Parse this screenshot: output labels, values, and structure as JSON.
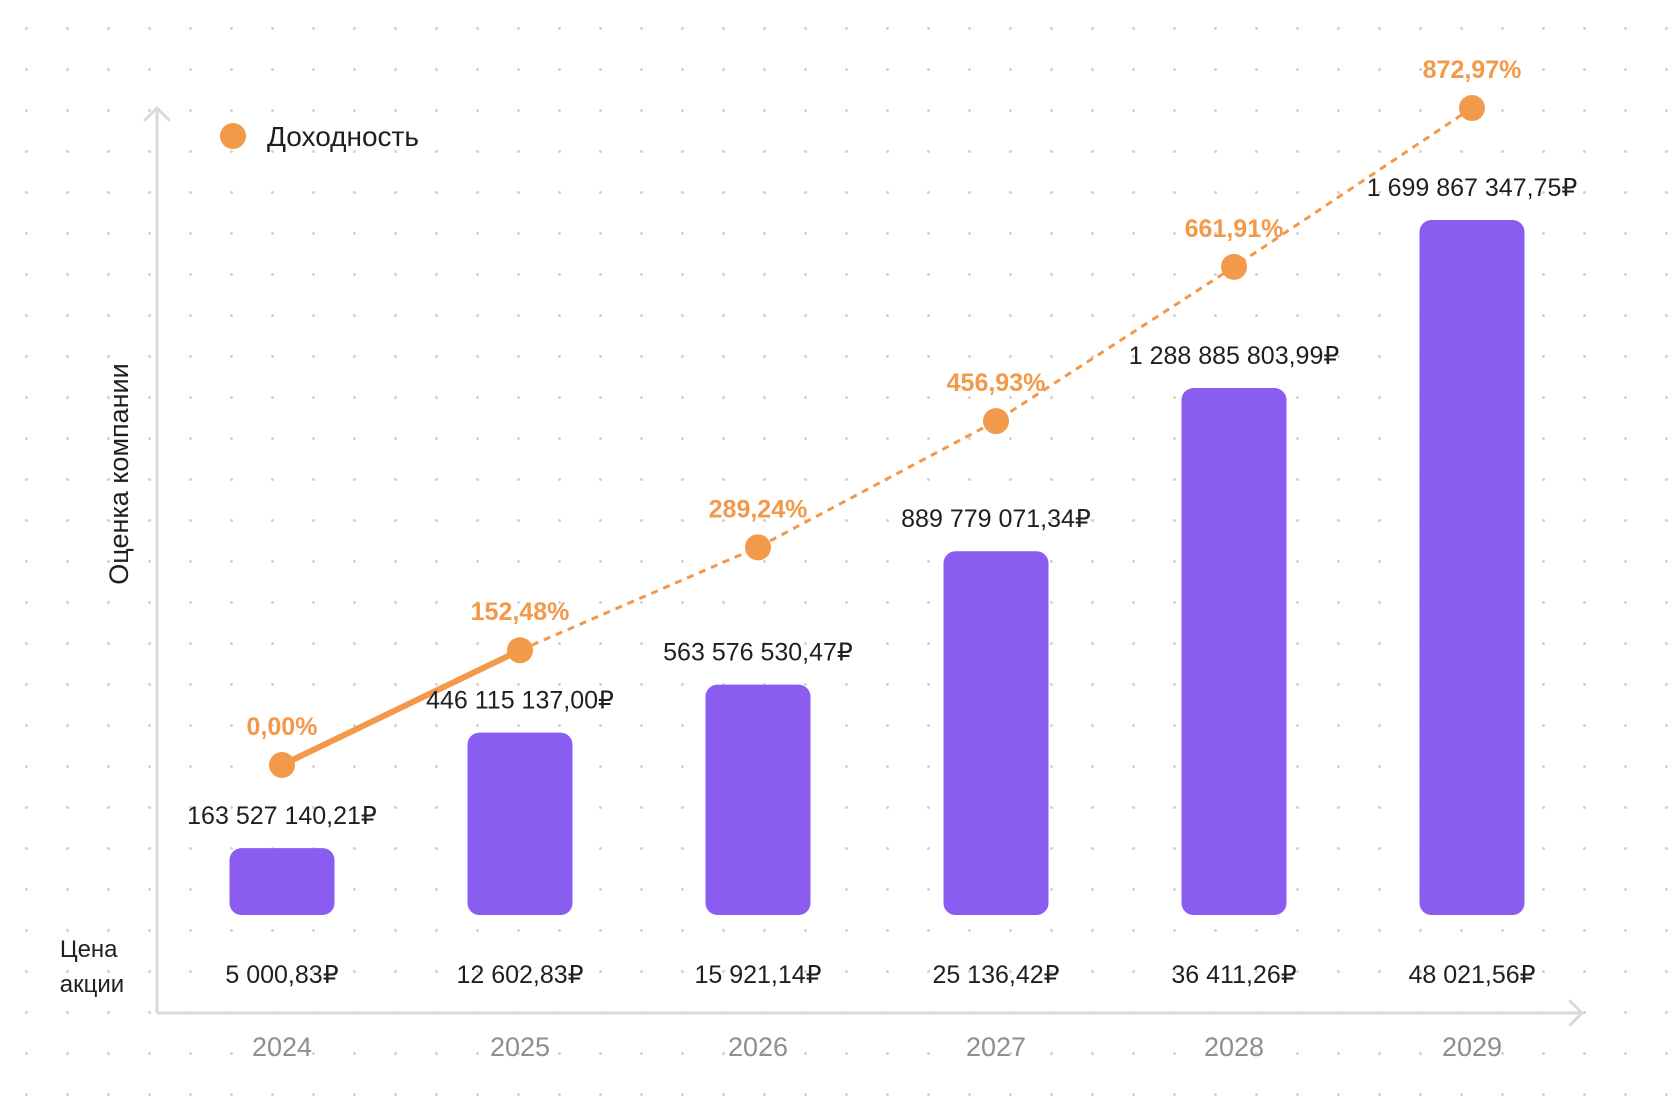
{
  "chart_data": {
    "type": "bar",
    "categories": [
      "2024",
      "2025",
      "2026",
      "2027",
      "2028",
      "2029"
    ],
    "ylabel": "Оценка компании",
    "colors": {
      "bars": "#8b5cf0",
      "line": "#f2994a",
      "axis": "#d9d9dd"
    },
    "series": [
      {
        "name": "",
        "type": "bar",
        "values": [
          163527140.21,
          446115137.0,
          563576530.47,
          889779071.34,
          1288885803.99,
          1699867347.75
        ],
        "labels": [
          "163 527 140,21₽",
          "446 115 137,00₽",
          "563 576 530,47₽",
          "889 779 071,34₽",
          "1 288 885 803,99₽",
          "1 699 867 347,75₽"
        ]
      },
      {
        "name": "Доходность",
        "type": "line",
        "values": [
          0.0,
          152.48,
          289.24,
          456.93,
          661.91,
          872.97
        ],
        "labels": [
          "0,00%",
          "152,48%",
          "289,24%",
          "456,93%",
          "661,91%",
          "872,97%"
        ]
      }
    ],
    "price_row": {
      "title_lines": [
        "Цена",
        "акции"
      ],
      "values": [
        5000.83,
        12602.83,
        15921.14,
        25136.42,
        36411.26,
        48021.56
      ],
      "labels": [
        "5 000,83₽",
        "12 602,83₽",
        "15 921,14₽",
        "25 136,42₽",
        "36 411,26₽",
        "48 021,56₽"
      ]
    },
    "legend": {
      "position": "top-left"
    }
  }
}
